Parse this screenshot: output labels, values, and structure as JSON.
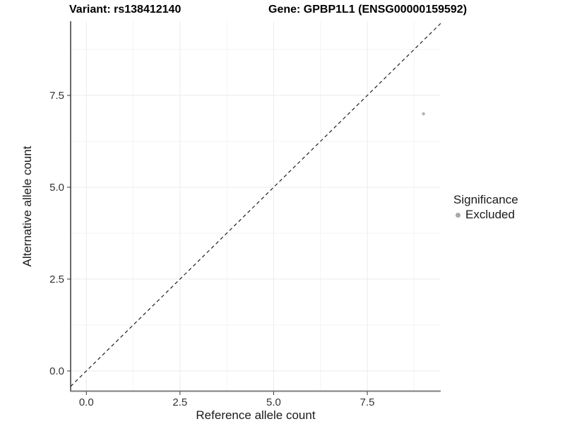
{
  "chart_data": {
    "type": "scatter",
    "title_left": "Variant: rs138412140",
    "title_right": "Gene: GPBP1L1 (ENSG00000159592)",
    "xlabel": "Reference allele count",
    "ylabel": "Alternative allele count",
    "xlim": [
      -0.42,
      9.46
    ],
    "ylim": [
      -0.54,
      9.52
    ],
    "xticks": {
      "values": [
        0,
        2.5,
        5,
        7.5
      ],
      "labels": [
        "0.0",
        "2.5",
        "5.0",
        "7.5"
      ]
    },
    "yticks": {
      "values": [
        0,
        2.5,
        5,
        7.5
      ],
      "labels": [
        "0.0",
        "2.5",
        "5.0",
        "7.5"
      ]
    },
    "minor_ticks_x": [
      1.25,
      3.75,
      6.25,
      8.75
    ],
    "minor_ticks_y": [
      1.25,
      3.75,
      6.25,
      8.75
    ],
    "grid": true,
    "legend_position": "right",
    "identity_line": {
      "type": "y=x",
      "style": "dashed",
      "color": "#1f1f1f"
    },
    "series": [
      {
        "name": "Excluded",
        "color": "#b3b3b3",
        "marker": "circle",
        "marker_radius": 2.2,
        "points": [
          {
            "x": 9,
            "y": 7
          }
        ]
      }
    ]
  },
  "legend": {
    "title": "Significance",
    "entries": [
      {
        "label": "Excluded",
        "color": "#a9a9a9"
      }
    ]
  },
  "colors": {
    "grid_major": "#ebebeb",
    "grid_minor": "#f3f3f3",
    "axis_line_y": "#1a1a1a",
    "axis_line_x": "#7d7d7d",
    "tick_mark": "#333333"
  }
}
